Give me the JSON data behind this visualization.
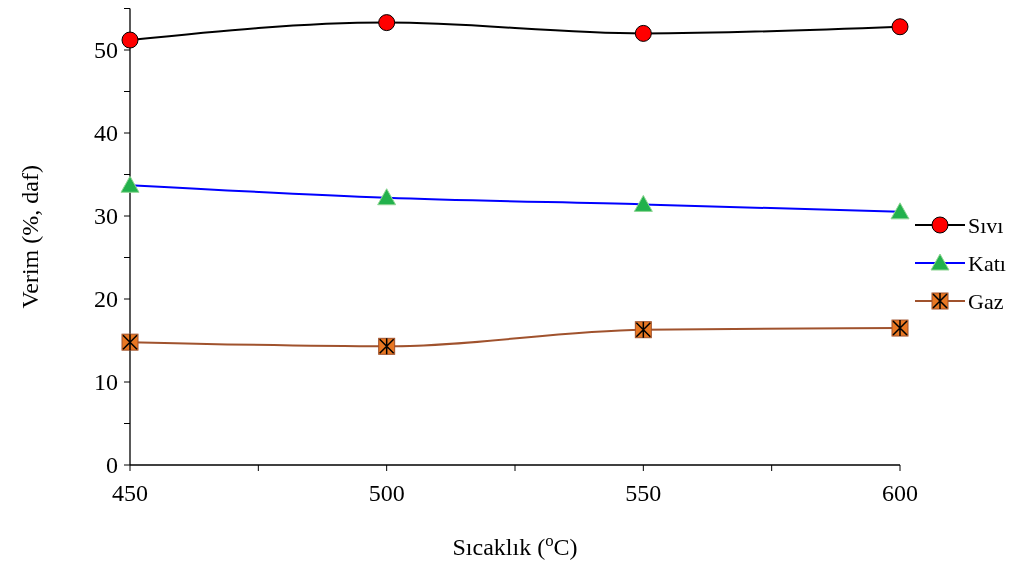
{
  "chart_data": {
    "type": "line",
    "xlabel": "Sıcaklık ($^{o}$C)",
    "ylabel": "Verim (%, daf)",
    "x": [
      450,
      500,
      550,
      600
    ],
    "xlim": [
      450,
      600
    ],
    "xticks": [
      450,
      {
        "value": 475,
        "label": null
      },
      500,
      {
        "value": 525,
        "label": null
      },
      550,
      {
        "value": 575,
        "label": null
      },
      600
    ],
    "ylim": [
      0,
      55
    ],
    "yticks": [
      0,
      {
        "value": 5,
        "label": null
      },
      10,
      {
        "value": 15,
        "label": null
      },
      20,
      {
        "value": 25,
        "label": null
      },
      30,
      {
        "value": 35,
        "label": null
      },
      40,
      {
        "value": 45,
        "label": null
      },
      50,
      {
        "value": 55,
        "label": null
      }
    ],
    "grid": false,
    "legend": "right",
    "line_style": "solid",
    "series": [
      {
        "name": "Sıvı",
        "color": "#000000",
        "colors": [
          "#ff0000",
          "#ff0000",
          "#ff0000",
          "#ff0000"
        ],
        "marker": "circle",
        "values": [
          51.2,
          53.3,
          52.0,
          52.8
        ]
      },
      {
        "name": "Katı",
        "color": "#0000ff",
        "colors": [
          "#22b14c",
          "#22b14c",
          "#22b14c",
          "#22b14c"
        ],
        "marker": "triangle",
        "values": [
          33.7,
          32.2,
          31.4,
          30.5
        ]
      },
      {
        "name": "Gaz",
        "color": "#a0522d",
        "colors": [
          "#e87722",
          "#e87722",
          "#e87722",
          "#e87722"
        ],
        "marker": "square",
        "values": [
          14.8,
          14.3,
          16.3,
          16.5
        ]
      }
    ]
  }
}
